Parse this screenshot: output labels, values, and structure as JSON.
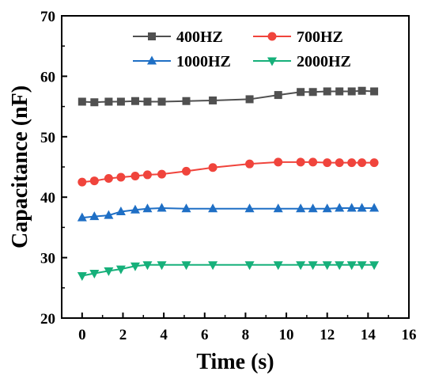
{
  "chart_data": {
    "type": "line",
    "xlabel": "Time (s)",
    "ylabel": "Capacitance (nF)",
    "xlim": [
      -1,
      16
    ],
    "ylim": [
      20,
      70
    ],
    "xticks": [
      0,
      2,
      4,
      6,
      8,
      10,
      12,
      14,
      16
    ],
    "yticks": [
      20,
      30,
      40,
      50,
      60,
      70
    ],
    "legend_position": "top-right",
    "series": [
      {
        "name": "400HZ",
        "color": "#505050",
        "marker": "square",
        "x": [
          0,
          0.6,
          1.3,
          1.9,
          2.6,
          3.2,
          3.9,
          5.1,
          6.4,
          8.2,
          9.6,
          10.7,
          11.3,
          12.0,
          12.6,
          13.2,
          13.7,
          14.3
        ],
        "y": [
          55.8,
          55.7,
          55.8,
          55.8,
          55.9,
          55.8,
          55.8,
          55.9,
          56.0,
          56.2,
          56.9,
          57.4,
          57.4,
          57.5,
          57.5,
          57.5,
          57.6,
          57.5
        ]
      },
      {
        "name": "700HZ",
        "color": "#f0443c",
        "marker": "circle",
        "x": [
          0,
          0.6,
          1.3,
          1.9,
          2.6,
          3.2,
          3.9,
          5.1,
          6.4,
          8.2,
          9.6,
          10.7,
          11.3,
          12.0,
          12.6,
          13.2,
          13.7,
          14.3
        ],
        "y": [
          42.5,
          42.7,
          43.1,
          43.3,
          43.5,
          43.7,
          43.8,
          44.3,
          44.9,
          45.5,
          45.8,
          45.8,
          45.8,
          45.7,
          45.7,
          45.7,
          45.7,
          45.7
        ]
      },
      {
        "name": "1000HZ",
        "color": "#1f6fc5",
        "marker": "triangle-up",
        "x": [
          0,
          0.6,
          1.3,
          1.9,
          2.6,
          3.2,
          3.9,
          5.1,
          6.4,
          8.2,
          9.6,
          10.7,
          11.3,
          12.0,
          12.6,
          13.2,
          13.7,
          14.3
        ],
        "y": [
          36.6,
          36.8,
          37.0,
          37.6,
          37.9,
          38.1,
          38.2,
          38.1,
          38.1,
          38.1,
          38.1,
          38.1,
          38.1,
          38.1,
          38.2,
          38.2,
          38.2,
          38.2
        ]
      },
      {
        "name": "2000HZ",
        "color": "#16b07a",
        "marker": "triangle-down",
        "x": [
          0,
          0.6,
          1.3,
          1.9,
          2.6,
          3.2,
          3.9,
          5.1,
          6.4,
          8.2,
          9.6,
          10.7,
          11.3,
          12.0,
          12.6,
          13.2,
          13.7,
          14.3
        ],
        "y": [
          27.0,
          27.4,
          27.8,
          28.1,
          28.6,
          28.8,
          28.8,
          28.8,
          28.8,
          28.8,
          28.8,
          28.8,
          28.8,
          28.8,
          28.8,
          28.8,
          28.8,
          28.8
        ]
      }
    ]
  }
}
